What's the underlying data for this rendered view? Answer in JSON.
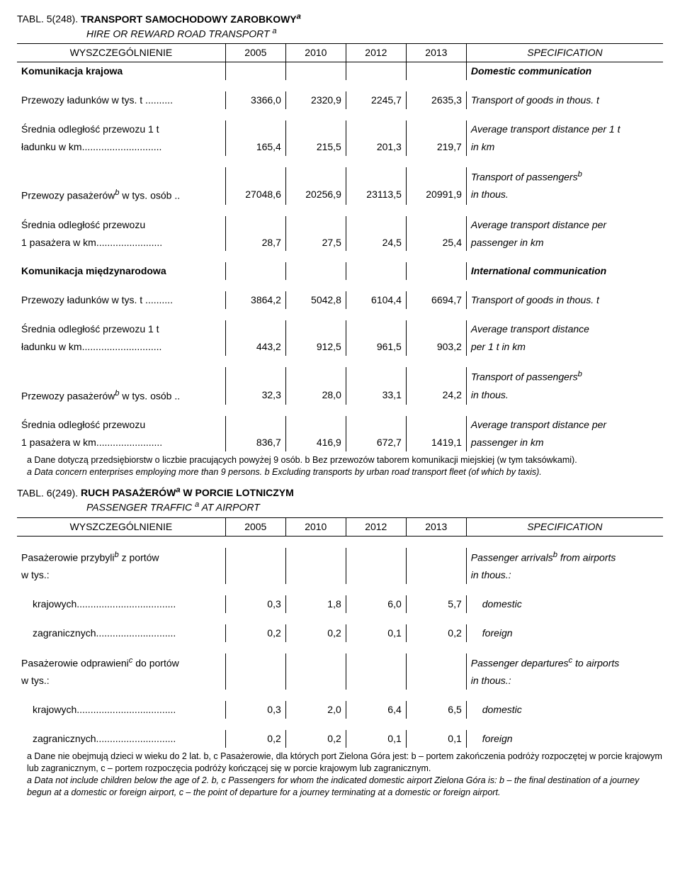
{
  "table1": {
    "titleLabel": "TABL. 5(248).",
    "titleMain": "TRANSPORT  SAMOCHODOWY  ZAROBKOWY",
    "titleSup": "a",
    "titleSub": "HIRE  OR  REWARD  ROAD  TRANSPORT",
    "titleSubSup": "a",
    "headLeft": "WYSZCZEGÓLNIENIE",
    "years": [
      "2005",
      "2010",
      "2012",
      "2013"
    ],
    "headRight": "SPECIFICATION",
    "rows": [
      {
        "type": "section",
        "pl": "Komunikacja krajowa",
        "en": "Domestic communication",
        "bold": true
      },
      {
        "type": "spacer"
      },
      {
        "type": "data",
        "pl": "Przewozy ładunków w tys. t ..........",
        "v": [
          "3366,0",
          "2320,9",
          "2245,7",
          "2635,3"
        ],
        "en": "Transport of goods in thous. t"
      },
      {
        "type": "spacer"
      },
      {
        "type": "data",
        "pl": "Średnia odległość przewozu 1 t",
        "v": [
          "",
          "",
          "",
          ""
        ],
        "en": "Average transport distance per 1 t"
      },
      {
        "type": "data",
        "pl": "  ładunku w km.............................",
        "v": [
          "165,4",
          "215,5",
          "201,3",
          "219,7"
        ],
        "en": "  in km"
      },
      {
        "type": "spacer"
      },
      {
        "type": "data",
        "pl": "",
        "v": [
          "",
          "",
          "",
          ""
        ],
        "en": "Transport of passengers",
        "enSup": "b"
      },
      {
        "type": "data",
        "pl": "Przewozy pasażerów",
        "plSup": "b",
        "plSuffix": " w tys. osób ..",
        "v": [
          "27048,6",
          "20256,9",
          "23113,5",
          "20991,9"
        ],
        "en": "  in thous."
      },
      {
        "type": "spacer"
      },
      {
        "type": "data",
        "pl": "Średnia odległość przewozu",
        "v": [
          "",
          "",
          "",
          ""
        ],
        "en": "Average transport distance per"
      },
      {
        "type": "data",
        "pl": "  1 pasażera w km........................",
        "v": [
          "28,7",
          "27,5",
          "24,5",
          "25,4"
        ],
        "en": "  passenger in km"
      },
      {
        "type": "spacer"
      },
      {
        "type": "section",
        "pl": "Komunikacja międzynarodowa",
        "en": "International communication",
        "bold": true
      },
      {
        "type": "spacer"
      },
      {
        "type": "data",
        "pl": "Przewozy ładunków w tys. t ..........",
        "v": [
          "3864,2",
          "5042,8",
          "6104,4",
          "6694,7"
        ],
        "en": "Transport of goods in thous. t"
      },
      {
        "type": "spacer"
      },
      {
        "type": "data",
        "pl": "Średnia odległość przewozu 1 t",
        "v": [
          "",
          "",
          "",
          ""
        ],
        "en": "Average transport distance"
      },
      {
        "type": "data",
        "pl": "  ładunku w km.............................",
        "v": [
          "443,2",
          "912,5",
          "961,5",
          "903,2"
        ],
        "en": "  per 1 t in km"
      },
      {
        "type": "spacer"
      },
      {
        "type": "data",
        "pl": "",
        "v": [
          "",
          "",
          "",
          ""
        ],
        "en": "Transport of passengers",
        "enSup": "b"
      },
      {
        "type": "data",
        "pl": "Przewozy pasażerów",
        "plSup": "b",
        "plSuffix": " w tys. osób ..",
        "v": [
          "32,3",
          "28,0",
          "33,1",
          "24,2"
        ],
        "en": "  in thous."
      },
      {
        "type": "spacer"
      },
      {
        "type": "data",
        "pl": "Średnia odległość przewozu",
        "v": [
          "",
          "",
          "",
          ""
        ],
        "en": "Average transport distance per"
      },
      {
        "type": "data",
        "pl": "  1 pasażera w km........................",
        "v": [
          "836,7",
          "416,9",
          "672,7",
          "1419,1"
        ],
        "en": "  passenger in km"
      }
    ],
    "footnotePl": "a Dane dotyczą przedsiębiorstw o liczbie pracujących powyżej 9 osób. b Bez przewozów taborem komunikacji miejskiej (w tym taksówkami).",
    "footnoteEn": "a Data concern enterprises employing more than 9 persons. b Excluding transports by urban road transport fleet (of which by taxis)."
  },
  "table2": {
    "titleLabel": "TABL. 6(249).",
    "titleMain": "RUCH  PASAŻERÓW",
    "titleSup": "a",
    "titleMainSuffix": "  W  PORCIE  LOTNICZYM",
    "titleSub": "PASSENGER  TRAFFIC",
    "titleSubSup": "a",
    "titleSubSuffix": "  AT  AIRPORT",
    "headLeft": "WYSZCZEGÓLNIENIE",
    "years": [
      "2005",
      "2010",
      "2012",
      "2013"
    ],
    "headRight": "SPECIFICATION",
    "rows": [
      {
        "type": "spacer"
      },
      {
        "type": "data",
        "pl": "Pasażerowie przybyli",
        "plSup": "b",
        "plSuffix": " z portów",
        "v": [
          "",
          "",
          "",
          ""
        ],
        "en": "Passenger arrivals",
        "enSup": "b",
        "enSuffix": " from airports"
      },
      {
        "type": "data",
        "pl": "  w tys.:",
        "v": [
          "",
          "",
          "",
          ""
        ],
        "en": "  in thous.:"
      },
      {
        "type": "spacer"
      },
      {
        "type": "data",
        "pl": "krajowych....................................",
        "indent": true,
        "v": [
          "0,3",
          "1,8",
          "6,0",
          "5,7"
        ],
        "en": "domestic",
        "enIndent": true
      },
      {
        "type": "spacer"
      },
      {
        "type": "data",
        "pl": "zagranicznych.............................",
        "indent": true,
        "v": [
          "0,2",
          "0,2",
          "0,1",
          "0,2"
        ],
        "en": "foreign",
        "enIndent": true
      },
      {
        "type": "spacer"
      },
      {
        "type": "data",
        "pl": "Pasażerowie odprawieni",
        "plSup": "c",
        "plSuffix": " do portów",
        "v": [
          "",
          "",
          "",
          ""
        ],
        "en": "Passenger departures",
        "enSup": "c",
        "enSuffix": " to airports"
      },
      {
        "type": "data",
        "pl": "  w tys.:",
        "v": [
          "",
          "",
          "",
          ""
        ],
        "en": "  in thous.:"
      },
      {
        "type": "spacer"
      },
      {
        "type": "data",
        "pl": "krajowych....................................",
        "indent": true,
        "v": [
          "0,3",
          "2,0",
          "6,4",
          "6,5"
        ],
        "en": "domestic",
        "enIndent": true
      },
      {
        "type": "spacer"
      },
      {
        "type": "data",
        "pl": "zagranicznych.............................",
        "indent": true,
        "v": [
          "0,2",
          "0,2",
          "0,1",
          "0,1"
        ],
        "en": "foreign",
        "enIndent": true
      }
    ],
    "footnotePl": "a Dane nie obejmują dzieci w wieku do 2 lat. b, c Pasażerowie, dla których port Zielona Góra jest: b – portem zakończenia podróży rozpoczętej w porcie krajowym lub zagranicznym, c – portem rozpoczęcia podróży kończącej się w porcie krajowym lub zagranicznym.",
    "footnoteEn": "a Data not include children below the age of 2. b, c Passengers for whom the indicated domestic airport Zielona Góra is: b – the final destination of a journey begun at a domestic or foreign airport, c – the point of departure for a journey terminating at a domestic or foreign airport."
  }
}
